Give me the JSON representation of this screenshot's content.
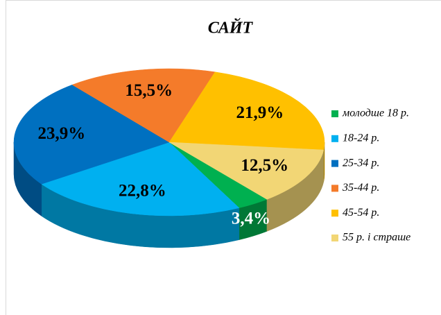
{
  "chart_data": {
    "type": "pie",
    "title": "САЙТ",
    "categories": [
      "молодше 18 р.",
      "18-24 р.",
      "25-34 р.",
      "35-44 р.",
      "45-54 р.",
      "55 р. і страше"
    ],
    "values": [
      3.4,
      22.8,
      23.9,
      15.5,
      21.9,
      12.5
    ],
    "value_labels": [
      "3,4%",
      "22,8%",
      "23,9%",
      "15,5%",
      "21,9%",
      "12,5%"
    ],
    "colors": [
      "#00b050",
      "#00b0f0",
      "#0070c0",
      "#f47b2a",
      "#ffc000",
      "#f2d675"
    ],
    "value_label_colors": [
      "#ffffff",
      "#000000",
      "#000000",
      "#000000",
      "#000000",
      "#000000"
    ],
    "legend": "right"
  }
}
